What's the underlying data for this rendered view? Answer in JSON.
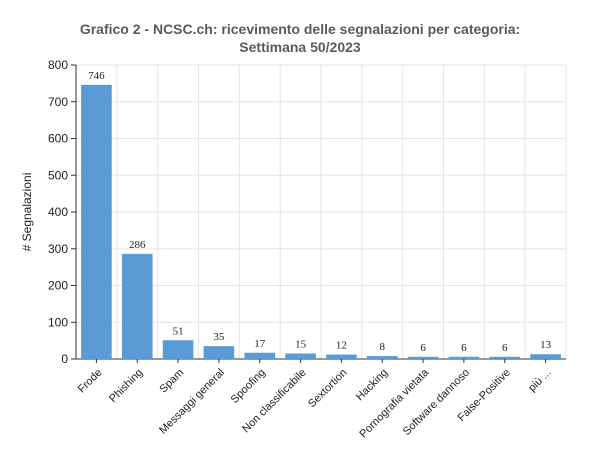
{
  "chart_data": {
    "type": "bar",
    "title_line1": "Grafico 2 - NCSC.ch: ricevimento delle segnalazioni per categoria:",
    "title_line2": "Settimana 50/2023",
    "xlabel": "",
    "ylabel": "# Segnalazioni",
    "ylim": [
      0,
      800
    ],
    "yticks": [
      0,
      100,
      200,
      300,
      400,
      500,
      600,
      700,
      800
    ],
    "grid": true,
    "legend": "none",
    "categories": [
      "Frode",
      "Phishing",
      "Spam",
      "Messaggi general",
      "Spoofing",
      "Non classificabile",
      "Sextortion",
      "Hacking",
      "Pornografia vietata",
      "Software dannoso",
      "False-Positive",
      "più ..."
    ],
    "values": [
      746,
      286,
      51,
      35,
      17,
      15,
      12,
      8,
      6,
      6,
      6,
      13
    ],
    "bar_color": "#5b9bd5"
  }
}
